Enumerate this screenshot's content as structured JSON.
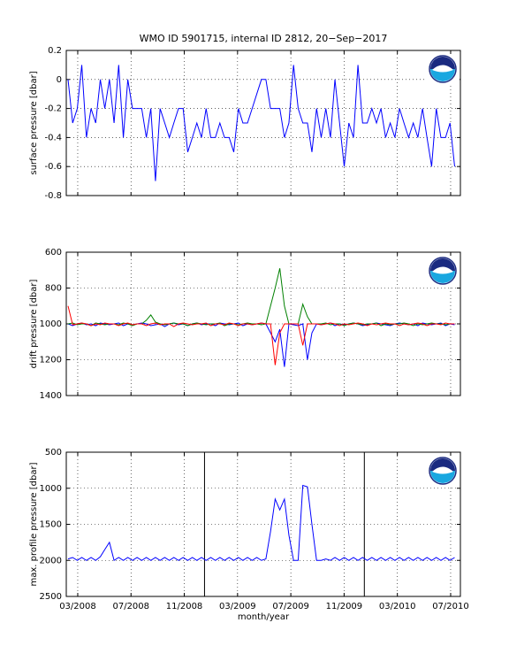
{
  "chart_data": [
    {
      "type": "line",
      "title": "WMO ID 5901715, internal ID 2812, 20−Sep−2017",
      "ylabel": "surface pressure [dbar]",
      "x": [
        2008.106,
        2008.135,
        2008.164,
        2008.192,
        2008.221,
        2008.25,
        2008.279,
        2008.308,
        2008.336,
        2008.365,
        2008.394,
        2008.423,
        2008.452,
        2008.48,
        2008.509,
        2008.538,
        2008.567,
        2008.596,
        2008.624,
        2008.653,
        2008.682,
        2008.711,
        2008.74,
        2008.768,
        2008.797,
        2008.826,
        2008.855,
        2008.884,
        2008.912,
        2008.941,
        2008.97,
        2008.999,
        2009.028,
        2009.056,
        2009.085,
        2009.114,
        2009.143,
        2009.172,
        2009.2,
        2009.229,
        2009.258,
        2009.287,
        2009.316,
        2009.344,
        2009.373,
        2009.402,
        2009.431,
        2009.46,
        2009.488,
        2009.517,
        2009.546,
        2009.575,
        2009.604,
        2009.632,
        2009.661,
        2009.69,
        2009.719,
        2009.748,
        2009.776,
        2009.805,
        2009.834,
        2009.863,
        2009.892,
        2009.92,
        2009.949,
        2009.978,
        2010.007,
        2010.036,
        2010.064,
        2010.093,
        2010.122,
        2010.151,
        2010.18,
        2010.208,
        2010.237,
        2010.266,
        2010.295,
        2010.324,
        2010.352,
        2010.381,
        2010.41,
        2010.439,
        2010.468,
        2010.496,
        2010.525
      ],
      "values": [
        0,
        -0.3,
        -0.2,
        0.1,
        -0.4,
        -0.2,
        -0.3,
        0,
        -0.2,
        0,
        -0.3,
        0.1,
        -0.4,
        0,
        -0.2,
        -0.2,
        -0.2,
        -0.4,
        -0.2,
        -0.7,
        -0.2,
        -0.3,
        -0.4,
        -0.3,
        -0.2,
        -0.2,
        -0.5,
        -0.4,
        -0.3,
        -0.4,
        -0.2,
        -0.4,
        -0.4,
        -0.3,
        -0.4,
        -0.4,
        -0.5,
        -0.2,
        -0.3,
        -0.3,
        -0.2,
        -0.1,
        0,
        0,
        -0.2,
        -0.2,
        -0.2,
        -0.4,
        -0.3,
        0.1,
        -0.2,
        -0.3,
        -0.3,
        -0.5,
        -0.2,
        -0.4,
        -0.2,
        -0.4,
        0,
        -0.3,
        -0.6,
        -0.3,
        -0.4,
        0.1,
        -0.3,
        -0.3,
        -0.2,
        -0.3,
        -0.2,
        -0.4,
        -0.3,
        -0.4,
        -0.2,
        -0.3,
        -0.4,
        -0.3,
        -0.4,
        -0.2,
        -0.4,
        -0.6,
        -0.2,
        -0.4,
        -0.4,
        -0.3,
        -0.6
      ],
      "color": "#0000ff",
      "xlim": [
        2008.095,
        2010.561
      ],
      "xticks": [
        2008.1667,
        2008.5,
        2008.8333,
        2009.1667,
        2009.5,
        2009.8333,
        2010.1667,
        2010.5
      ],
      "ylim": [
        -0.8,
        0.2
      ],
      "yticks": [
        -0.8,
        -0.6,
        -0.4,
        -0.2,
        0,
        0.2
      ],
      "grid": true
    },
    {
      "type": "line",
      "ylabel": "drift pressure [dbar]",
      "x": [
        2008.106,
        2008.135,
        2008.164,
        2008.192,
        2008.221,
        2008.25,
        2008.279,
        2008.308,
        2008.336,
        2008.365,
        2008.394,
        2008.423,
        2008.452,
        2008.48,
        2008.509,
        2008.538,
        2008.567,
        2008.596,
        2008.624,
        2008.653,
        2008.682,
        2008.711,
        2008.74,
        2008.768,
        2008.797,
        2008.826,
        2008.855,
        2008.884,
        2008.912,
        2008.941,
        2008.97,
        2008.999,
        2009.028,
        2009.056,
        2009.085,
        2009.114,
        2009.143,
        2009.172,
        2009.2,
        2009.229,
        2009.258,
        2009.287,
        2009.316,
        2009.344,
        2009.373,
        2009.402,
        2009.431,
        2009.46,
        2009.488,
        2009.517,
        2009.546,
        2009.575,
        2009.604,
        2009.632,
        2009.661,
        2009.69,
        2009.719,
        2009.748,
        2009.776,
        2009.805,
        2009.834,
        2009.863,
        2009.892,
        2009.92,
        2009.949,
        2009.978,
        2010.007,
        2010.036,
        2010.064,
        2010.093,
        2010.122,
        2010.151,
        2010.18,
        2010.208,
        2010.237,
        2010.266,
        2010.295,
        2010.324,
        2010.352,
        2010.381,
        2010.41,
        2010.439,
        2010.468,
        2010.496,
        2010.525
      ],
      "series": [
        {
          "color": "#0000ff",
          "values": [
            1000,
            1010,
            1000,
            995,
            1005,
            1000,
            1010,
            995,
            1000,
            1005,
            1000,
            995,
            1010,
            1000,
            1005,
            1000,
            995,
            1000,
            1010,
            1005,
            1000,
            1015,
            1000,
            995,
            1005,
            1000,
            1010,
            1000,
            995,
            1005,
            1000,
            1000,
            1010,
            995,
            1000,
            1005,
            1000,
            995,
            1010,
            1000,
            1005,
            1000,
            995,
            1000,
            1050,
            1100,
            1030,
            1240,
            1000,
            1005,
            1010,
            1000,
            1200,
            1050,
            1000,
            1005,
            1000,
            995,
            1010,
            1000,
            1005,
            1000,
            995,
            1000,
            1010,
            1005,
            1000,
            995,
            1000,
            1005,
            1010,
            1000,
            995,
            1000,
            1005,
            1000,
            1010,
            995,
            1000,
            1005,
            1000,
            995,
            1010,
            1000,
            1005
          ]
        },
        {
          "color": "#008000",
          "values": [
            1000,
            995,
            1005,
            1000,
            1000,
            1010,
            995,
            1000,
            1005,
            1000,
            1000,
            1005,
            995,
            1000,
            1010,
            1000,
            1000,
            980,
            950,
            990,
            1000,
            1005,
            1000,
            995,
            1000,
            1000,
            1010,
            1000,
            995,
            1000,
            1005,
            1000,
            1000,
            995,
            1010,
            1000,
            1000,
            1005,
            1000,
            995,
            1000,
            1000,
            1005,
            1000,
            900,
            800,
            690,
            900,
            1000,
            1000,
            1000,
            890,
            960,
            1000,
            1000,
            1000,
            995,
            1005,
            1000,
            1000,
            1010,
            1000,
            995,
            1000,
            1005,
            1000,
            1000,
            995,
            1010,
            1000,
            1005,
            1000,
            1000,
            995,
            1000,
            1010,
            1000,
            1005,
            1000,
            995,
            1000,
            1000,
            1005,
            1000,
            1000
          ]
        },
        {
          "color": "#ff0000",
          "values": [
            900,
            1005,
            1000,
            995,
            1000,
            1010,
            1000,
            1005,
            995,
            1000,
            1000,
            1010,
            1000,
            995,
            1005,
            1000,
            1000,
            1010,
            1000,
            995,
            1005,
            1000,
            1000,
            1015,
            1000,
            995,
            1000,
            1005,
            1000,
            1000,
            995,
            1010,
            1000,
            1000,
            1005,
            995,
            1000,
            1010,
            1000,
            1000,
            1005,
            1000,
            995,
            1000,
            1000,
            1230,
            1050,
            1000,
            1000,
            1000,
            1000,
            1120,
            1000,
            1000,
            1000,
            1005,
            1000,
            995,
            1000,
            1010,
            1000,
            1005,
            1000,
            995,
            1000,
            1010,
            1000,
            1005,
            1000,
            995,
            1000,
            1000,
            1010,
            1000,
            1005,
            1000,
            995,
            1000,
            1010,
            1000,
            1000,
            1005,
            995,
            1000,
            1000
          ]
        }
      ],
      "xlim": [
        2008.095,
        2010.561
      ],
      "xticks": [
        2008.1667,
        2008.5,
        2008.8333,
        2009.1667,
        2009.5,
        2009.8333,
        2010.1667,
        2010.5
      ],
      "ylim": [
        600,
        1400
      ],
      "yticks": [
        600,
        800,
        1000,
        1200,
        1400
      ],
      "y_reversed": true,
      "grid": true
    },
    {
      "type": "line",
      "ylabel": "max. profile pressure [dbar]",
      "xlabel": "month/year",
      "x": [
        2008.106,
        2008.135,
        2008.164,
        2008.192,
        2008.221,
        2008.25,
        2008.279,
        2008.308,
        2008.336,
        2008.365,
        2008.394,
        2008.423,
        2008.452,
        2008.48,
        2008.509,
        2008.538,
        2008.567,
        2008.596,
        2008.624,
        2008.653,
        2008.682,
        2008.711,
        2008.74,
        2008.768,
        2008.797,
        2008.826,
        2008.855,
        2008.884,
        2008.912,
        2008.941,
        2008.97,
        2008.999,
        2009.028,
        2009.056,
        2009.085,
        2009.114,
        2009.143,
        2009.172,
        2009.2,
        2009.229,
        2009.258,
        2009.287,
        2009.316,
        2009.344,
        2009.373,
        2009.402,
        2009.431,
        2009.46,
        2009.488,
        2009.517,
        2009.546,
        2009.575,
        2009.604,
        2009.632,
        2009.661,
        2009.69,
        2009.719,
        2009.748,
        2009.776,
        2009.805,
        2009.834,
        2009.863,
        2009.892,
        2009.92,
        2009.949,
        2009.978,
        2010.007,
        2010.036,
        2010.064,
        2010.093,
        2010.122,
        2010.151,
        2010.18,
        2010.208,
        2010.237,
        2010.266,
        2010.295,
        2010.324,
        2010.352,
        2010.381,
        2010.41,
        2010.439,
        2010.468,
        2010.496,
        2010.525
      ],
      "values": [
        1980,
        1960,
        2000,
        1960,
        2000,
        1960,
        2000,
        1950,
        1850,
        1750,
        2000,
        1960,
        2000,
        1960,
        2000,
        1960,
        2000,
        1960,
        2000,
        1960,
        2000,
        1960,
        2000,
        1960,
        2000,
        1960,
        2000,
        1960,
        2000,
        1960,
        2000,
        1960,
        2000,
        1960,
        2000,
        1960,
        2000,
        1960,
        2000,
        1960,
        2000,
        1960,
        2000,
        1980,
        1600,
        1150,
        1300,
        1150,
        1650,
        2000,
        2000,
        960,
        980,
        1500,
        2000,
        2000,
        1980,
        2000,
        1960,
        2000,
        1960,
        2000,
        1960,
        2000,
        1960,
        2000,
        1960,
        2000,
        1960,
        2000,
        1960,
        2000,
        1960,
        2000,
        1960,
        2000,
        1960,
        2000,
        1960,
        2000,
        1960,
        2000,
        1960,
        2000,
        1960
      ],
      "color": "#0000ff",
      "xlim": [
        2008.095,
        2010.561
      ],
      "xticks": [
        {
          "value": 2008.1667,
          "label": "03/2008"
        },
        {
          "value": 2008.5,
          "label": "07/2008"
        },
        {
          "value": 2008.8333,
          "label": "11/2008"
        },
        {
          "value": 2009.1667,
          "label": "03/2009"
        },
        {
          "value": 2009.5,
          "label": "07/2009"
        },
        {
          "value": 2009.8333,
          "label": "11/2009"
        },
        {
          "value": 2010.1667,
          "label": "03/2010"
        },
        {
          "value": 2010.5,
          "label": "07/2010"
        }
      ],
      "vlines": [
        2008.96,
        2009.96
      ],
      "ylim": [
        500,
        2500
      ],
      "yticks": [
        500,
        1000,
        1500,
        2000,
        2500
      ],
      "y_reversed": true,
      "grid": true
    }
  ]
}
